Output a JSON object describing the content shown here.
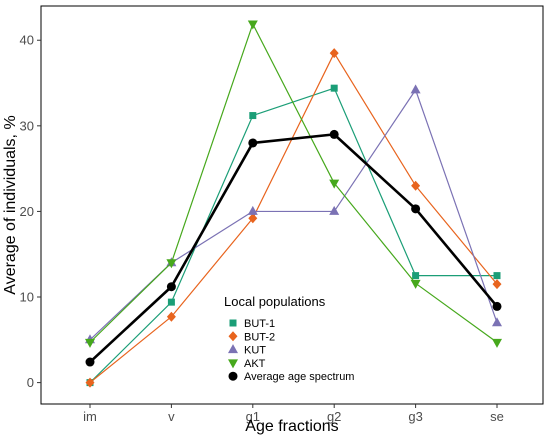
{
  "chart_data": {
    "type": "line",
    "xlabel": "Age fractions",
    "ylabel": "Average of individuals, %",
    "categories": [
      "im",
      "v",
      "g1",
      "g2",
      "g3",
      "se"
    ],
    "ylim": [
      -2.5,
      44
    ],
    "yticks": [
      0,
      10,
      20,
      30,
      40
    ],
    "grid": false,
    "legend": {
      "title": "Local populations",
      "placement": "bottom-center"
    },
    "series": [
      {
        "name": "BUT-1",
        "color": "#1b9e77",
        "marker": "square",
        "values": [
          0,
          9.4,
          31.2,
          34.4,
          12.5,
          12.5
        ]
      },
      {
        "name": "BUT-2",
        "color": "#e8641e",
        "marker": "diamond",
        "values": [
          0,
          7.7,
          19.2,
          38.5,
          23.0,
          11.5
        ]
      },
      {
        "name": "KUT",
        "color": "#7b72b4",
        "marker": "triangle-up",
        "values": [
          5.0,
          14.0,
          20.0,
          20.0,
          34.2,
          7.0
        ]
      },
      {
        "name": "AKT",
        "color": "#46a81c",
        "marker": "triangle-down",
        "values": [
          4.7,
          14.0,
          41.9,
          23.3,
          11.6,
          4.7
        ]
      },
      {
        "name": "Average age spectrum",
        "color": "#000000",
        "marker": "circle",
        "values": [
          2.4,
          11.2,
          28.0,
          29.0,
          20.3,
          8.9
        ]
      }
    ]
  }
}
